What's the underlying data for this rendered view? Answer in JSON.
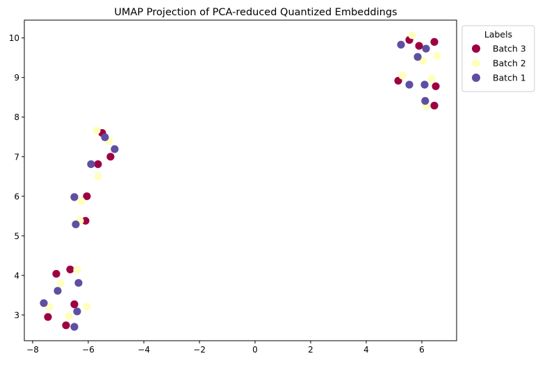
{
  "chart_data": {
    "type": "scatter",
    "title": "UMAP Projection of PCA-reduced Quantized Embeddings",
    "xlabel": "",
    "ylabel": "",
    "xlim": [
      -8.3,
      7.25
    ],
    "ylim": [
      2.35,
      10.45
    ],
    "xticks": [
      -8,
      -6,
      -4,
      -2,
      0,
      2,
      4,
      6
    ],
    "yticks": [
      3,
      4,
      5,
      6,
      7,
      8,
      9,
      10
    ],
    "xtick_labels": [
      "−8",
      "−6",
      "−4",
      "−2",
      "0",
      "2",
      "4",
      "6"
    ],
    "ytick_labels": [
      "3",
      "4",
      "5",
      "6",
      "7",
      "8",
      "9",
      "10"
    ],
    "grid": false,
    "legend": {
      "title": "Labels",
      "placement": "outside-top-right"
    },
    "series": [
      {
        "name": "Batch 3",
        "color": "#9e0142",
        "points": [
          [
            5.55,
            9.95
          ],
          [
            6.45,
            9.9
          ],
          [
            5.9,
            9.8
          ],
          [
            5.15,
            8.92
          ],
          [
            6.5,
            8.78
          ],
          [
            6.45,
            8.29
          ],
          [
            -5.5,
            7.6
          ],
          [
            -5.65,
            6.81
          ],
          [
            -5.2,
            7.0
          ],
          [
            -6.05,
            6.0
          ],
          [
            -6.1,
            5.38
          ],
          [
            -7.15,
            4.04
          ],
          [
            -6.65,
            4.15
          ],
          [
            -6.5,
            3.27
          ],
          [
            -7.45,
            2.95
          ],
          [
            -6.8,
            2.74
          ]
        ]
      },
      {
        "name": "Batch 2",
        "color": "#ffffbe",
        "points": [
          [
            5.65,
            10.07
          ],
          [
            6.55,
            9.55
          ],
          [
            6.05,
            9.42
          ],
          [
            5.3,
            9.05
          ],
          [
            6.35,
            8.97
          ],
          [
            6.15,
            8.27
          ],
          [
            -5.7,
            7.66
          ],
          [
            -5.25,
            7.39
          ],
          [
            -5.65,
            6.5
          ],
          [
            -6.25,
            5.88
          ],
          [
            -6.3,
            5.38
          ],
          [
            -6.4,
            4.14
          ],
          [
            -7.0,
            3.8
          ],
          [
            -6.05,
            3.21
          ],
          [
            -7.4,
            3.2
          ],
          [
            -6.7,
            2.97
          ]
        ]
      },
      {
        "name": "Batch 1",
        "color": "#5e4fa2",
        "points": [
          [
            5.25,
            9.83
          ],
          [
            6.15,
            9.73
          ],
          [
            5.85,
            9.52
          ],
          [
            5.55,
            8.82
          ],
          [
            6.1,
            8.82
          ],
          [
            6.12,
            8.41
          ],
          [
            -5.4,
            7.49
          ],
          [
            -5.05,
            7.19
          ],
          [
            -5.9,
            6.81
          ],
          [
            -6.5,
            5.98
          ],
          [
            -6.45,
            5.29
          ],
          [
            -7.1,
            3.61
          ],
          [
            -6.35,
            3.81
          ],
          [
            -7.6,
            3.3
          ],
          [
            -6.4,
            3.09
          ],
          [
            -6.5,
            2.7
          ]
        ]
      }
    ],
    "legend_order": [
      "Batch 3",
      "Batch 2",
      "Batch 1"
    ]
  }
}
